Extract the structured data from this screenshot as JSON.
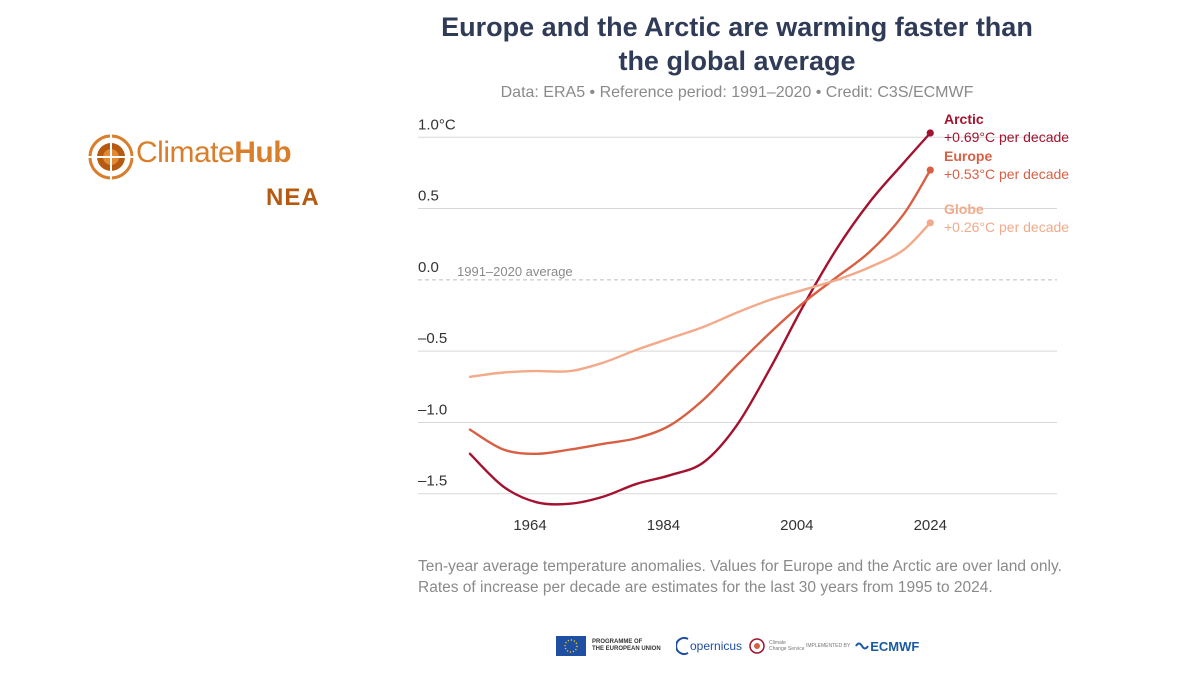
{
  "header": {
    "title_line1": "Europe and the Arctic are warming faster than",
    "title_line2": "the global average",
    "subtitle": "Data: ERA5 • Reference period: 1991–2020 • Credit: C3S/ECMWF"
  },
  "logo": {
    "name_part1": "Climate",
    "name_part2": "Hub",
    "sub": "NEA",
    "brand_color": "#d97e2a",
    "sub_color": "#b65a12"
  },
  "chart_data": {
    "type": "line",
    "xlim": [
      1955,
      2043
    ],
    "ylim": [
      -1.6,
      1.1
    ],
    "x_ticks": [
      1964,
      1984,
      2004,
      2024
    ],
    "x_tick_labels": [
      "1964",
      "1984",
      "2004",
      "2024"
    ],
    "y_ticks": [
      1.0,
      0.5,
      0.0,
      -0.5,
      -1.0,
      -1.5
    ],
    "y_tick_labels": [
      "1.0°C",
      "0.5",
      "0.0",
      "–0.5",
      "–1.0",
      "–1.5"
    ],
    "reference_label": "1991–2020 average",
    "grid": true,
    "series": [
      {
        "name": "Arctic",
        "rate": "+0.69°C per decade",
        "color": "#a3122e",
        "x": [
          1955,
          1960,
          1965,
          1970,
          1975,
          1980,
          1985,
          1990,
          1995,
          2000,
          2005,
          2010,
          2015,
          2020,
          2024
        ],
        "values": [
          -1.22,
          -1.45,
          -1.56,
          -1.57,
          -1.52,
          -1.43,
          -1.37,
          -1.28,
          -1.02,
          -0.62,
          -0.18,
          0.22,
          0.55,
          0.82,
          1.03
        ]
      },
      {
        "name": "Europe",
        "rate": "+0.53°C per decade",
        "color": "#d95f43",
        "x": [
          1955,
          1960,
          1965,
          1970,
          1975,
          1980,
          1985,
          1990,
          1995,
          2000,
          2005,
          2010,
          2015,
          2020,
          2024
        ],
        "values": [
          -1.05,
          -1.19,
          -1.22,
          -1.19,
          -1.15,
          -1.11,
          -1.02,
          -0.84,
          -0.6,
          -0.37,
          -0.16,
          0.02,
          0.2,
          0.46,
          0.77
        ]
      },
      {
        "name": "Globe",
        "rate": "+0.26°C per decade",
        "color": "#f2aa8a",
        "x": [
          1955,
          1960,
          1965,
          1970,
          1975,
          1980,
          1985,
          1990,
          1995,
          2000,
          2005,
          2010,
          2015,
          2020,
          2024
        ],
        "values": [
          -0.68,
          -0.65,
          -0.64,
          -0.64,
          -0.58,
          -0.49,
          -0.41,
          -0.33,
          -0.23,
          -0.14,
          -0.07,
          0.0,
          0.09,
          0.21,
          0.4
        ]
      }
    ]
  },
  "caption": {
    "line1": "Ten-year average temperature anomalies. Values for Europe and the Arctic are over land only.",
    "line2": "Rates of increase per decade are estimates for the last 30 years from 1995 to 2024."
  },
  "footer": {
    "eu_line1": "PROGRAMME OF",
    "eu_line2": "THE EUROPEAN UNION",
    "copernicus": "opernicus",
    "c3s_line1": "Climate",
    "c3s_line2": "Change Service",
    "implemented": "IMPLEMENTED BY",
    "ecmwf": "ECMWF"
  }
}
